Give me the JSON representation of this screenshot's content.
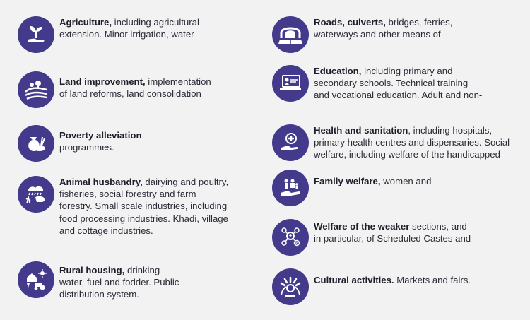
{
  "colors": {
    "icon_bg": "#443a8c",
    "background": "#f2f2f2"
  },
  "left": [
    {
      "icon": "plant-in-hand-icon",
      "title": "Agriculture,",
      "lines": [
        " including agricultural",
        "extension. Minor irrigation, water"
      ]
    },
    {
      "icon": "field-landscape-icon",
      "title": "Land improvement,",
      "lines": [
        " implementation",
        "of land reforms, land consolidation"
      ]
    },
    {
      "icon": "grain-sack-icon",
      "title": "Poverty alleviation",
      "lines": [
        "",
        "programmes."
      ]
    },
    {
      "icon": "animals-rain-icon",
      "title": "Animal husbandry,",
      "lines": [
        " dairying and poultry,",
        "fisheries, social forestry and farm",
        "forestry. Small scale industries, including",
        "food processing industries. Khadi, village",
        "and cottage industries."
      ]
    },
    {
      "icon": "house-tractor-icon",
      "title": "Rural housing,",
      "lines": [
        " drinking",
        "water, fuel and fodder. Public",
        "distribution system."
      ]
    }
  ],
  "right": [
    {
      "icon": "tunnel-road-icon",
      "title": "Roads, culverts,",
      "lines": [
        " bridges, ferries,",
        "waterways and other means of"
      ]
    },
    {
      "icon": "computer-teacher-icon",
      "title": "Education,",
      "lines": [
        " including primary and",
        "secondary schools. Technical training",
        "and vocational education. Adult and non-"
      ]
    },
    {
      "icon": "medical-hand-icon",
      "title": "Health and sanitation",
      "lines": [
        ", including hospitals,",
        "primary health centres and dispensaries. Social",
        "welfare, including welfare of the handicapped"
      ]
    },
    {
      "icon": "family-hand-icon",
      "title": "Family welfare,",
      "lines": [
        " women and"
      ]
    },
    {
      "icon": "welfare-network-icon",
      "title": "Welfare of the weaker",
      "lines": [
        " sections, and",
        "in particular, of Scheduled Castes and"
      ]
    },
    {
      "icon": "cultural-arch-icon",
      "title": "Cultural activities.",
      "lines": [
        " Markets and fairs."
      ]
    }
  ]
}
